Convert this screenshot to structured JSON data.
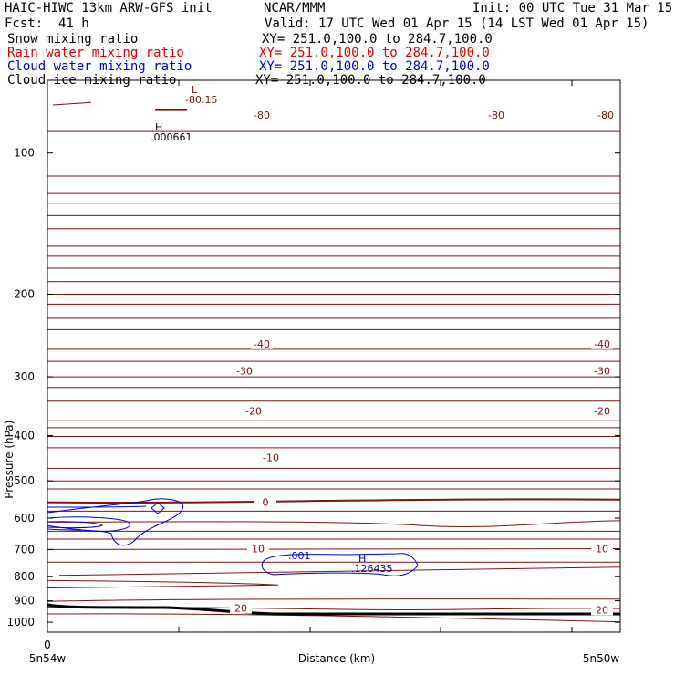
{
  "header": {
    "title": "HAIC-HIWC 13km ARW-GFS init",
    "org": "NCAR/MMM",
    "init": "Init: 00 UTC Tue 31 Mar 15",
    "fcst_label": "Fcst:",
    "fcst_value": "41 h",
    "valid": "Valid: 17 UTC Wed 01 Apr 15 (14 LST Wed 01 Apr 15)"
  },
  "legend": [
    {
      "name": "Snow mixing ratio",
      "xy": "XY= 251.0,100.0 to 284.7,100.0",
      "color": "#000000"
    },
    {
      "name": "Rain water mixing ratio",
      "xy": "XY= 251.0,100.0 to 284.7,100.0",
      "color": "#e00000"
    },
    {
      "name": "Cloud water mixing ratio",
      "xy": "XY= 251.0,100.0 to 284.7,100.0",
      "color": "#0000cc"
    },
    {
      "name": "Cloud ice mixing ratio",
      "xy": "XY= 251.0,100.0 to 284.7,100.0",
      "color": "#000000"
    }
  ],
  "chart_data": {
    "type": "line",
    "xlabel": "Distance (km)",
    "ylabel": "Pressure (hPa)",
    "x_tick_labels": [
      "0"
    ],
    "x_endpoint_labels": [
      "5n54w",
      "5n50w"
    ],
    "y_ticks": [
      100,
      200,
      300,
      400,
      500,
      600,
      700,
      800,
      900,
      1000
    ],
    "ylim": [
      1050,
      70
    ],
    "scale": "log-pressure",
    "colors": {
      "temperature": "#7a1414",
      "cloud_water": "#0000cc",
      "ground": "#000000"
    },
    "temperature_contour_labels": [
      {
        "text": "-80",
        "p": 83
      },
      {
        "text": "-80",
        "p": 83
      },
      {
        "text": "-80",
        "p": 83
      },
      {
        "text": "-40",
        "p": 255
      },
      {
        "text": "-40",
        "p": 255
      },
      {
        "text": "-30",
        "p": 291
      },
      {
        "text": "-30",
        "p": 291
      },
      {
        "text": "-20",
        "p": 355
      },
      {
        "text": "-20",
        "p": 355
      },
      {
        "text": "-10",
        "p": 446
      },
      {
        "text": "0",
        "p": 555
      },
      {
        "text": "10",
        "p": 697
      },
      {
        "text": "10",
        "p": 697
      },
      {
        "text": "20",
        "p": 933
      },
      {
        "text": "20",
        "p": 940
      }
    ],
    "extrema": [
      {
        "type": "L",
        "value": "-80.15",
        "p": 82,
        "color": "#7a1414"
      },
      {
        "type": "H",
        "value": ".000661",
        "p": 152,
        "color": "#000000"
      },
      {
        "type": "H",
        "value": ".126435",
        "p": 932,
        "color": "#0000cc"
      }
    ],
    "cloud_water_labels": [
      ".001"
    ]
  }
}
